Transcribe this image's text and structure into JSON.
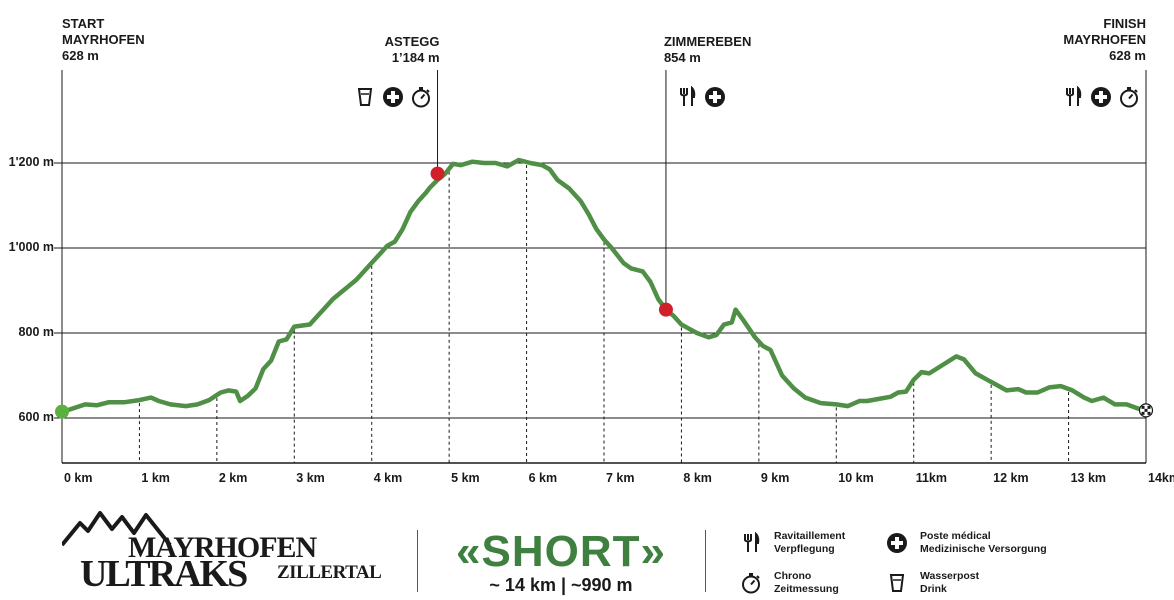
{
  "chart_data": {
    "type": "line",
    "title": "",
    "xlabel": "",
    "ylabel": "",
    "xlim": [
      0,
      14
    ],
    "ylim": [
      500,
      1330
    ],
    "x_ticks": [
      "0 km",
      "1 km",
      "2 km",
      "3 km",
      "4 km",
      "5 km",
      "6 km",
      "7 km",
      "8 km",
      "9 km",
      "10 km",
      "11km",
      "12 km",
      "13 km",
      "14km"
    ],
    "y_ticks": [
      "600 m",
      "800 m",
      "1'000 m",
      "1'200 m"
    ],
    "y_tick_values": [
      600,
      800,
      1000,
      1200
    ],
    "grid": "horizontal",
    "series": [
      {
        "color": "#4f8f46",
        "x": [
          0,
          0.1,
          0.3,
          0.45,
          0.6,
          0.8,
          1.0,
          1.15,
          1.25,
          1.4,
          1.6,
          1.75,
          1.9,
          2.05,
          2.15,
          2.25,
          2.3,
          2.4,
          2.5,
          2.6,
          2.7,
          2.8,
          2.9,
          3.0,
          3.2,
          3.3,
          3.4,
          3.5,
          3.6,
          3.7,
          3.8,
          3.9,
          4.0,
          4.1,
          4.2,
          4.3,
          4.4,
          4.5,
          4.6,
          4.7,
          4.75,
          4.85,
          4.95,
          5.05,
          5.15,
          5.3,
          5.45,
          5.6,
          5.75,
          5.9,
          6.05,
          6.2,
          6.3,
          6.4,
          6.55,
          6.7,
          6.8,
          6.9,
          7.0,
          7.1,
          7.25,
          7.35,
          7.5,
          7.6,
          7.7,
          7.8,
          7.9,
          8.0,
          8.1,
          8.2,
          8.35,
          8.45,
          8.55,
          8.65,
          8.7,
          8.8,
          8.95,
          9.05,
          9.15,
          9.3,
          9.45,
          9.6,
          9.8,
          10.0,
          10.15,
          10.3,
          10.4,
          10.55,
          10.7,
          10.8,
          10.9,
          11.0,
          11.1,
          11.2,
          11.35,
          11.55,
          11.65,
          11.8,
          11.95,
          12.05,
          12.2,
          12.35,
          12.45,
          12.6,
          12.75,
          12.9,
          13.05,
          13.2,
          13.3,
          13.45,
          13.6,
          13.75,
          13.9,
          14.0
        ],
        "values": [
          615,
          620,
          632,
          630,
          637,
          637,
          642,
          648,
          640,
          632,
          628,
          632,
          642,
          660,
          665,
          662,
          640,
          652,
          670,
          715,
          735,
          780,
          785,
          815,
          820,
          840,
          860,
          880,
          895,
          910,
          925,
          945,
          965,
          985,
          1005,
          1015,
          1045,
          1085,
          1110,
          1130,
          1142,
          1160,
          1175,
          1198,
          1195,
          1203,
          1200,
          1200,
          1192,
          1207,
          1200,
          1195,
          1185,
          1160,
          1140,
          1110,
          1080,
          1045,
          1020,
          1000,
          965,
          952,
          945,
          920,
          880,
          855,
          840,
          820,
          810,
          800,
          790,
          795,
          820,
          825,
          855,
          830,
          790,
          770,
          760,
          700,
          670,
          648,
          635,
          632,
          628,
          640,
          640,
          645,
          650,
          660,
          662,
          690,
          708,
          705,
          722,
          745,
          738,
          705,
          690,
          680,
          665,
          668,
          660,
          660,
          672,
          675,
          665,
          648,
          640,
          648,
          632,
          632,
          622,
          618
        ]
      }
    ],
    "markers": [
      {
        "label": "start",
        "x": 0,
        "y": 615,
        "color": "#5bb041"
      },
      {
        "label": "Astegg",
        "x": 4.85,
        "y": 1175,
        "color": "#d0202a"
      },
      {
        "label": "Zimmereben",
        "x": 7.8,
        "y": 855,
        "color": "#d0202a"
      },
      {
        "label": "finish",
        "x": 14,
        "y": 618,
        "color": "checkered"
      }
    ],
    "dashed_at_km": [
      1,
      2,
      3,
      4,
      5,
      6,
      7,
      8,
      9,
      10,
      11,
      12,
      13
    ],
    "stations": [
      {
        "name": "START\nMAYRHOFEN",
        "elevation": "628 m",
        "km": 0,
        "align": "left",
        "icons": []
      },
      {
        "name": "ASTEGG",
        "elevation": "1’184 m",
        "km": 4.85,
        "align": "right",
        "icons": [
          "drink-icon",
          "medical-icon",
          "chrono-icon"
        ]
      },
      {
        "name": "ZIMMEREBEN",
        "elevation": "854 m",
        "km": 7.8,
        "align": "left",
        "icons": [
          "food-icon",
          "medical-icon"
        ]
      },
      {
        "name": "FINISH\nMAYRHOFEN",
        "elevation": "628 m",
        "km": 14,
        "align": "right",
        "icons": [
          "food-icon",
          "medical-icon",
          "chrono-icon"
        ]
      }
    ]
  },
  "footer": {
    "logo_line1": "MAYRHOFEN",
    "logo_line2": "ULTRAKS",
    "logo_line3": "ZILLERTAL",
    "race_name": "«SHORT»",
    "race_stats": "~ 14 km | ~990 m",
    "legend": [
      {
        "icon": "food-icon",
        "line1": "Ravitaillement",
        "line2": "Verpflegung"
      },
      {
        "icon": "chrono-icon",
        "line1": "Chrono",
        "line2": "Zeitmessung"
      },
      {
        "icon": "medical-icon",
        "line1": "Poste médical",
        "line2": "Medizinische Versorgung"
      },
      {
        "icon": "drink-icon",
        "line1": "Wasserpost",
        "line2": "Drink"
      }
    ],
    "accent_color": "#3f7f3f"
  }
}
